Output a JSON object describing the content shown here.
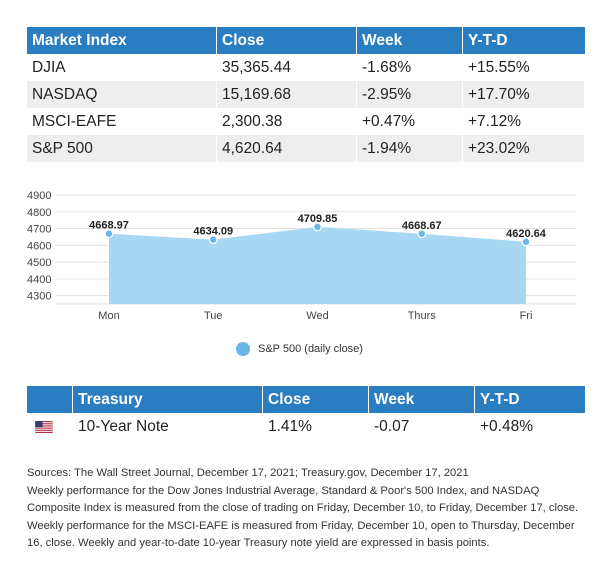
{
  "market_table": {
    "headers": [
      "Market Index",
      "Close",
      "Week",
      "Y-T-D"
    ],
    "rows": [
      [
        "DJIA",
        "35,365.44",
        "-1.68%",
        "+15.55%"
      ],
      [
        "NASDAQ",
        "15,169.68",
        "-2.95%",
        "+17.70%"
      ],
      [
        "MSCI-EAFE",
        "2,300.38",
        "+0.47%",
        "+7.12%"
      ],
      [
        "S&P 500",
        "4,620.64",
        "-1.94%",
        "+23.02%"
      ]
    ]
  },
  "chart_data": {
    "type": "area",
    "categories": [
      "Mon",
      "Tue",
      "Wed",
      "Thurs",
      "Fri"
    ],
    "series": [
      {
        "name": "S&P 500 (daily close)",
        "values": [
          4668.97,
          4634.09,
          4709.85,
          4668.67,
          4620.64
        ]
      }
    ],
    "data_labels": [
      "4668.97",
      "4634.09",
      "4709.85",
      "4668.67",
      "4620.64"
    ],
    "y_ticks": [
      4300,
      4400,
      4500,
      4600,
      4700,
      4800,
      4900
    ],
    "ylim": [
      4250,
      4900
    ],
    "grid": true,
    "legend": "bottom",
    "color": "#a8d7f3",
    "point_color": "#69b6e6"
  },
  "treasury_table": {
    "headers": [
      "",
      "Treasury",
      "Close",
      "Week",
      "Y-T-D"
    ],
    "row": {
      "flag_icon": "us-flag-icon",
      "name": "10-Year Note",
      "close": "1.41%",
      "week": "-0.07",
      "ytd": "+0.48%"
    }
  },
  "notes": [
    "Sources: The Wall Street Journal, December 17, 2021; Treasury.gov, December 17, 2021",
    "Weekly performance for the Dow Jones Industrial Average, Standard & Poor's 500 Index, and NASDAQ",
    "Composite Index is measured from the close of trading on Friday, December 10, to Friday, December 17, close.",
    "Weekly performance for the MSCI-EAFE is measured from Friday, December 10, open to Thursday, December",
    "16, close. Weekly and year-to-date 10-year Treasury note yield are expressed in basis points."
  ],
  "colors": {
    "header_blue": "#2b7dc1",
    "row_shade": "#eeeeee"
  }
}
